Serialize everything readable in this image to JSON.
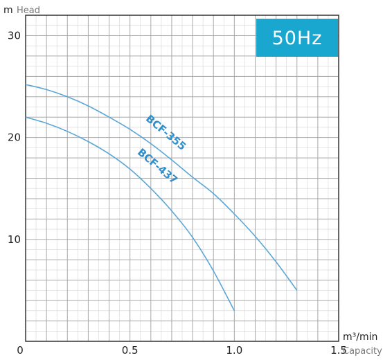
{
  "chart_data": {
    "type": "line",
    "title": "",
    "badge": {
      "text": "50Hz",
      "color": "#1aa7cf"
    },
    "y_axis": {
      "unit": "m",
      "label": "Head",
      "range": [
        0,
        32
      ],
      "ticks": [
        10,
        20,
        30
      ]
    },
    "x_axis": {
      "unit": "m³/min",
      "label": "Capacity",
      "range": [
        0,
        1.5
      ],
      "ticks": [
        "0",
        "0.5",
        "1.0",
        "1.5"
      ]
    },
    "grid": true,
    "grid_major_x": 0.1,
    "grid_major_y": 2,
    "series": [
      {
        "name": "BCF-355",
        "color": "#5aa6d6",
        "x": [
          0,
          0.1,
          0.2,
          0.3,
          0.4,
          0.5,
          0.6,
          0.7,
          0.8,
          0.9,
          1.0,
          1.1,
          1.2,
          1.3
        ],
        "y": [
          25.2,
          24.7,
          24.0,
          23.1,
          22.0,
          20.8,
          19.4,
          17.8,
          16.1,
          14.5,
          12.5,
          10.3,
          7.8,
          5.0
        ]
      },
      {
        "name": "BCF-437",
        "color": "#5aa6d6",
        "x": [
          0,
          0.1,
          0.2,
          0.3,
          0.4,
          0.5,
          0.6,
          0.7,
          0.8,
          0.9,
          1.0
        ],
        "y": [
          22.0,
          21.4,
          20.6,
          19.6,
          18.4,
          16.9,
          15.0,
          12.8,
          10.2,
          6.9,
          3.0
        ]
      }
    ]
  }
}
